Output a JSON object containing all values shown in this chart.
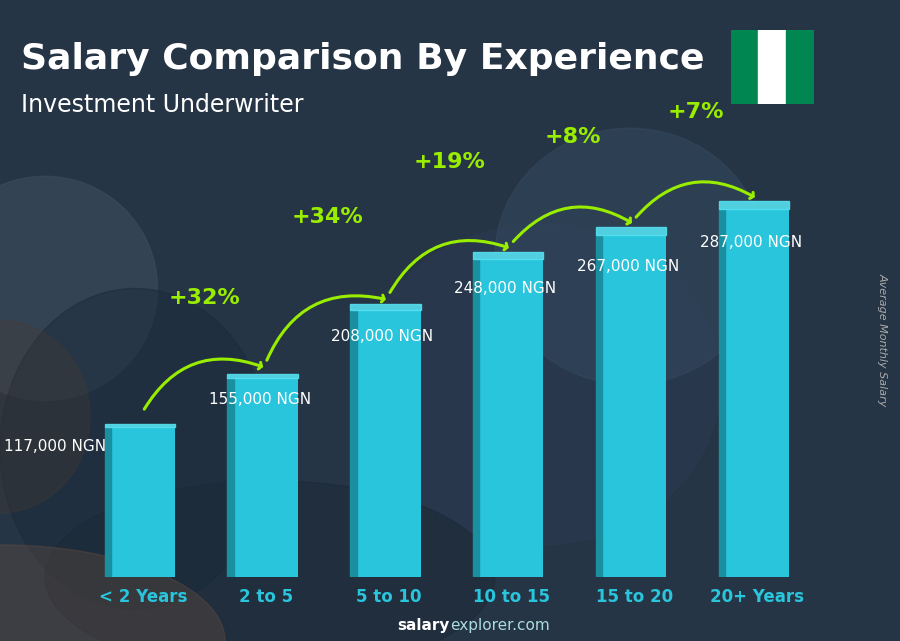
{
  "title": "Salary Comparison By Experience",
  "subtitle": "Investment Underwriter",
  "ylabel": "Average Monthly Salary",
  "footer_bold": "salary",
  "footer_normal": "explorer.com",
  "categories": [
    "< 2 Years",
    "2 to 5",
    "5 to 10",
    "10 to 15",
    "15 to 20",
    "20+ Years"
  ],
  "values": [
    117000,
    155000,
    208000,
    248000,
    267000,
    287000
  ],
  "value_labels": [
    "117,000 NGN",
    "155,000 NGN",
    "208,000 NGN",
    "248,000 NGN",
    "267,000 NGN",
    "287,000 NGN"
  ],
  "pct_labels": [
    "+32%",
    "+34%",
    "+19%",
    "+8%",
    "+7%"
  ],
  "bar_color_face": "#29c5dc",
  "bar_color_left": "#1a8fa0",
  "bar_color_top": "#55e0f0",
  "title_color": "#ffffff",
  "subtitle_color": "#ffffff",
  "label_color": "#ffffff",
  "pct_color": "#99ee00",
  "arrow_color": "#99ee00",
  "tick_color": "#29c5dc",
  "footer_bold_color": "#ffffff",
  "footer_normal_color": "#aadddd",
  "ylabel_color": "#aaaaaa",
  "ylim": [
    0,
    360000
  ],
  "title_fontsize": 26,
  "subtitle_fontsize": 17,
  "value_label_fontsize": 11,
  "pct_fontsize": 16,
  "tick_fontsize": 12,
  "bar_width": 0.52,
  "nigeria_flag_green": "#008751",
  "nigeria_flag_white": "#ffffff",
  "bg_top": "#2a3a5c",
  "bg_bottom": "#1a1a2e"
}
